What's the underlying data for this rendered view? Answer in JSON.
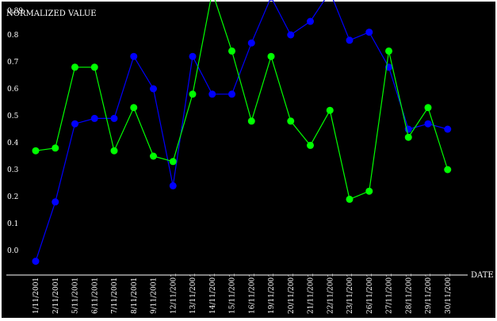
{
  "chart_data": {
    "type": "line",
    "ylabel": "NORMALIZED VALUE",
    "xlabel": "DATE",
    "y_ticks": [
      "0.0",
      "0.1",
      "0.2",
      "0.3",
      "0.4",
      "0.5",
      "0.6",
      "0.7",
      "0.8",
      "0.89"
    ],
    "ylim": [
      -0.05,
      0.99
    ],
    "categories": [
      "1/11/2001",
      "2/11/2001",
      "5/11/2001",
      "6/11/2001",
      "7/11/2001",
      "8/11/2001",
      "9/11/2001",
      "12/11/2001",
      "13/11/2001",
      "14/11/2001",
      "15/11/2001",
      "16/11/2001",
      "19/11/2001",
      "20/11/2001",
      "21/11/2001",
      "22/11/2001",
      "23/11/2001",
      "26/11/2001",
      "27/11/2001",
      "28/11/2001",
      "29/11/2001",
      "30/11/2001"
    ],
    "grid": false,
    "background": "#000000",
    "series": [
      {
        "color": "#0000ff",
        "values": [
          -0.04,
          0.18,
          0.47,
          0.49,
          0.49,
          0.72,
          0.6,
          0.24,
          0.72,
          0.58,
          0.58,
          0.77,
          0.94,
          0.8,
          0.85,
          0.96,
          0.78,
          0.81,
          0.68,
          0.45,
          0.47,
          0.45
        ]
      },
      {
        "color": "#00ff00",
        "values": [
          0.37,
          0.38,
          0.68,
          0.68,
          0.37,
          0.53,
          0.35,
          0.33,
          0.58,
          0.96,
          0.74,
          0.48,
          0.72,
          0.48,
          0.39,
          0.52,
          0.19,
          0.22,
          0.74,
          0.42,
          0.53,
          0.3
        ]
      }
    ]
  }
}
